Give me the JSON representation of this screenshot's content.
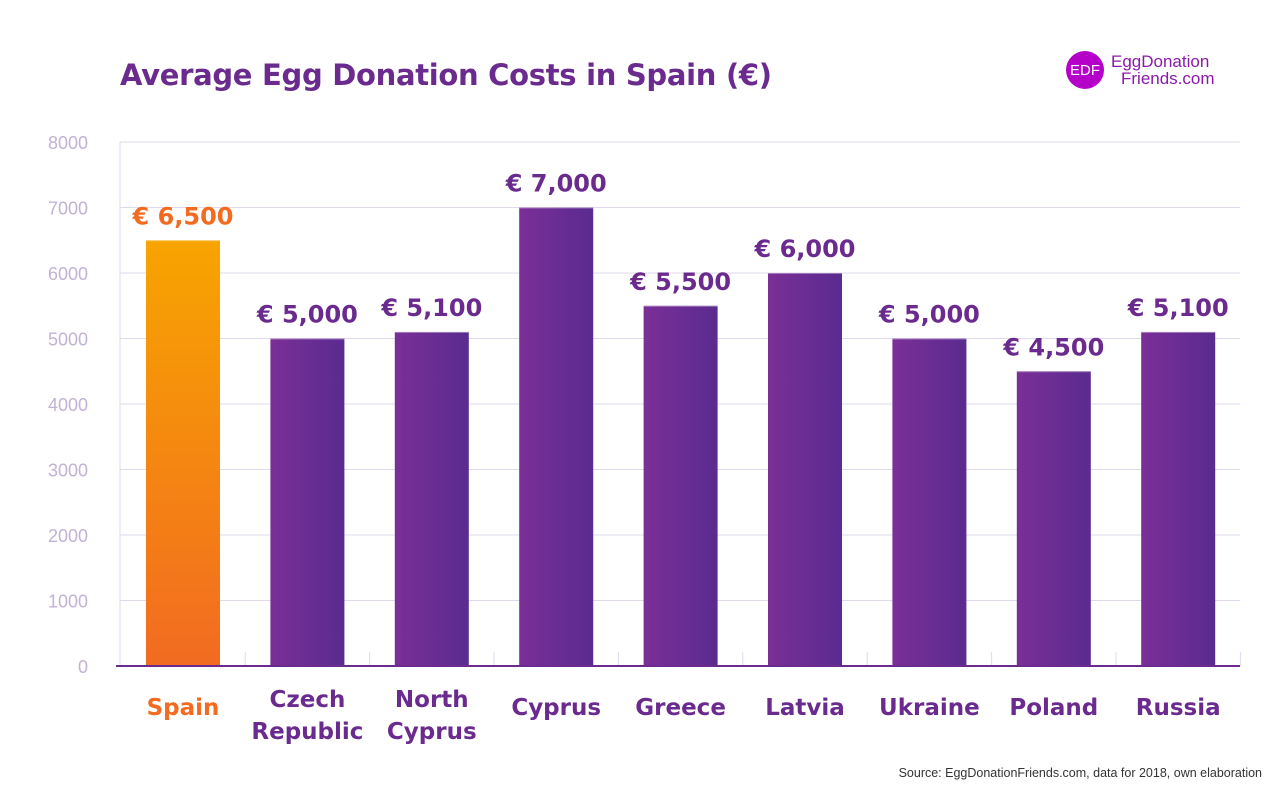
{
  "title": "Average Egg Donation Costs in Spain (€)",
  "logo": {
    "badge": "EDF",
    "line1": "EggDonation",
    "line2": "Friends.com"
  },
  "source": "Source: EggDonationFriends.com, data for 2018, own elaboration",
  "colors": {
    "title": "#6a2a8e",
    "highlight_top": "#f7a400",
    "highlight_bottom": "#f26b21",
    "bar_light": "#7a2f97",
    "bar_dark": "#5a2b90",
    "tick": "#c2b2d6",
    "grid": "#e1d8ec",
    "axis": "#6a2a8e"
  },
  "chart_data": {
    "type": "bar",
    "title": "Average Egg Donation Costs in Spain (€)",
    "xlabel": "",
    "ylabel": "",
    "ylim": [
      0,
      8000
    ],
    "yticks": [
      0,
      1000,
      2000,
      3000,
      4000,
      5000,
      6000,
      7000,
      8000
    ],
    "grid": true,
    "highlight_index": 0,
    "categories": [
      [
        "Spain"
      ],
      [
        "Czech",
        "Republic"
      ],
      [
        "North",
        "Cyprus"
      ],
      [
        "Cyprus"
      ],
      [
        "Greece"
      ],
      [
        "Latvia"
      ],
      [
        "Ukraine"
      ],
      [
        "Poland"
      ],
      [
        "Russia"
      ]
    ],
    "values": [
      6500,
      5000,
      5100,
      7000,
      5500,
      6000,
      5000,
      4500,
      5100
    ],
    "value_labels": [
      "€ 6,500",
      "€ 5,000",
      "€ 5,100",
      "€ 7,000",
      "€ 5,500",
      "€ 6,000",
      "€ 5,000",
      "€ 4,500",
      "€ 5,100"
    ]
  }
}
